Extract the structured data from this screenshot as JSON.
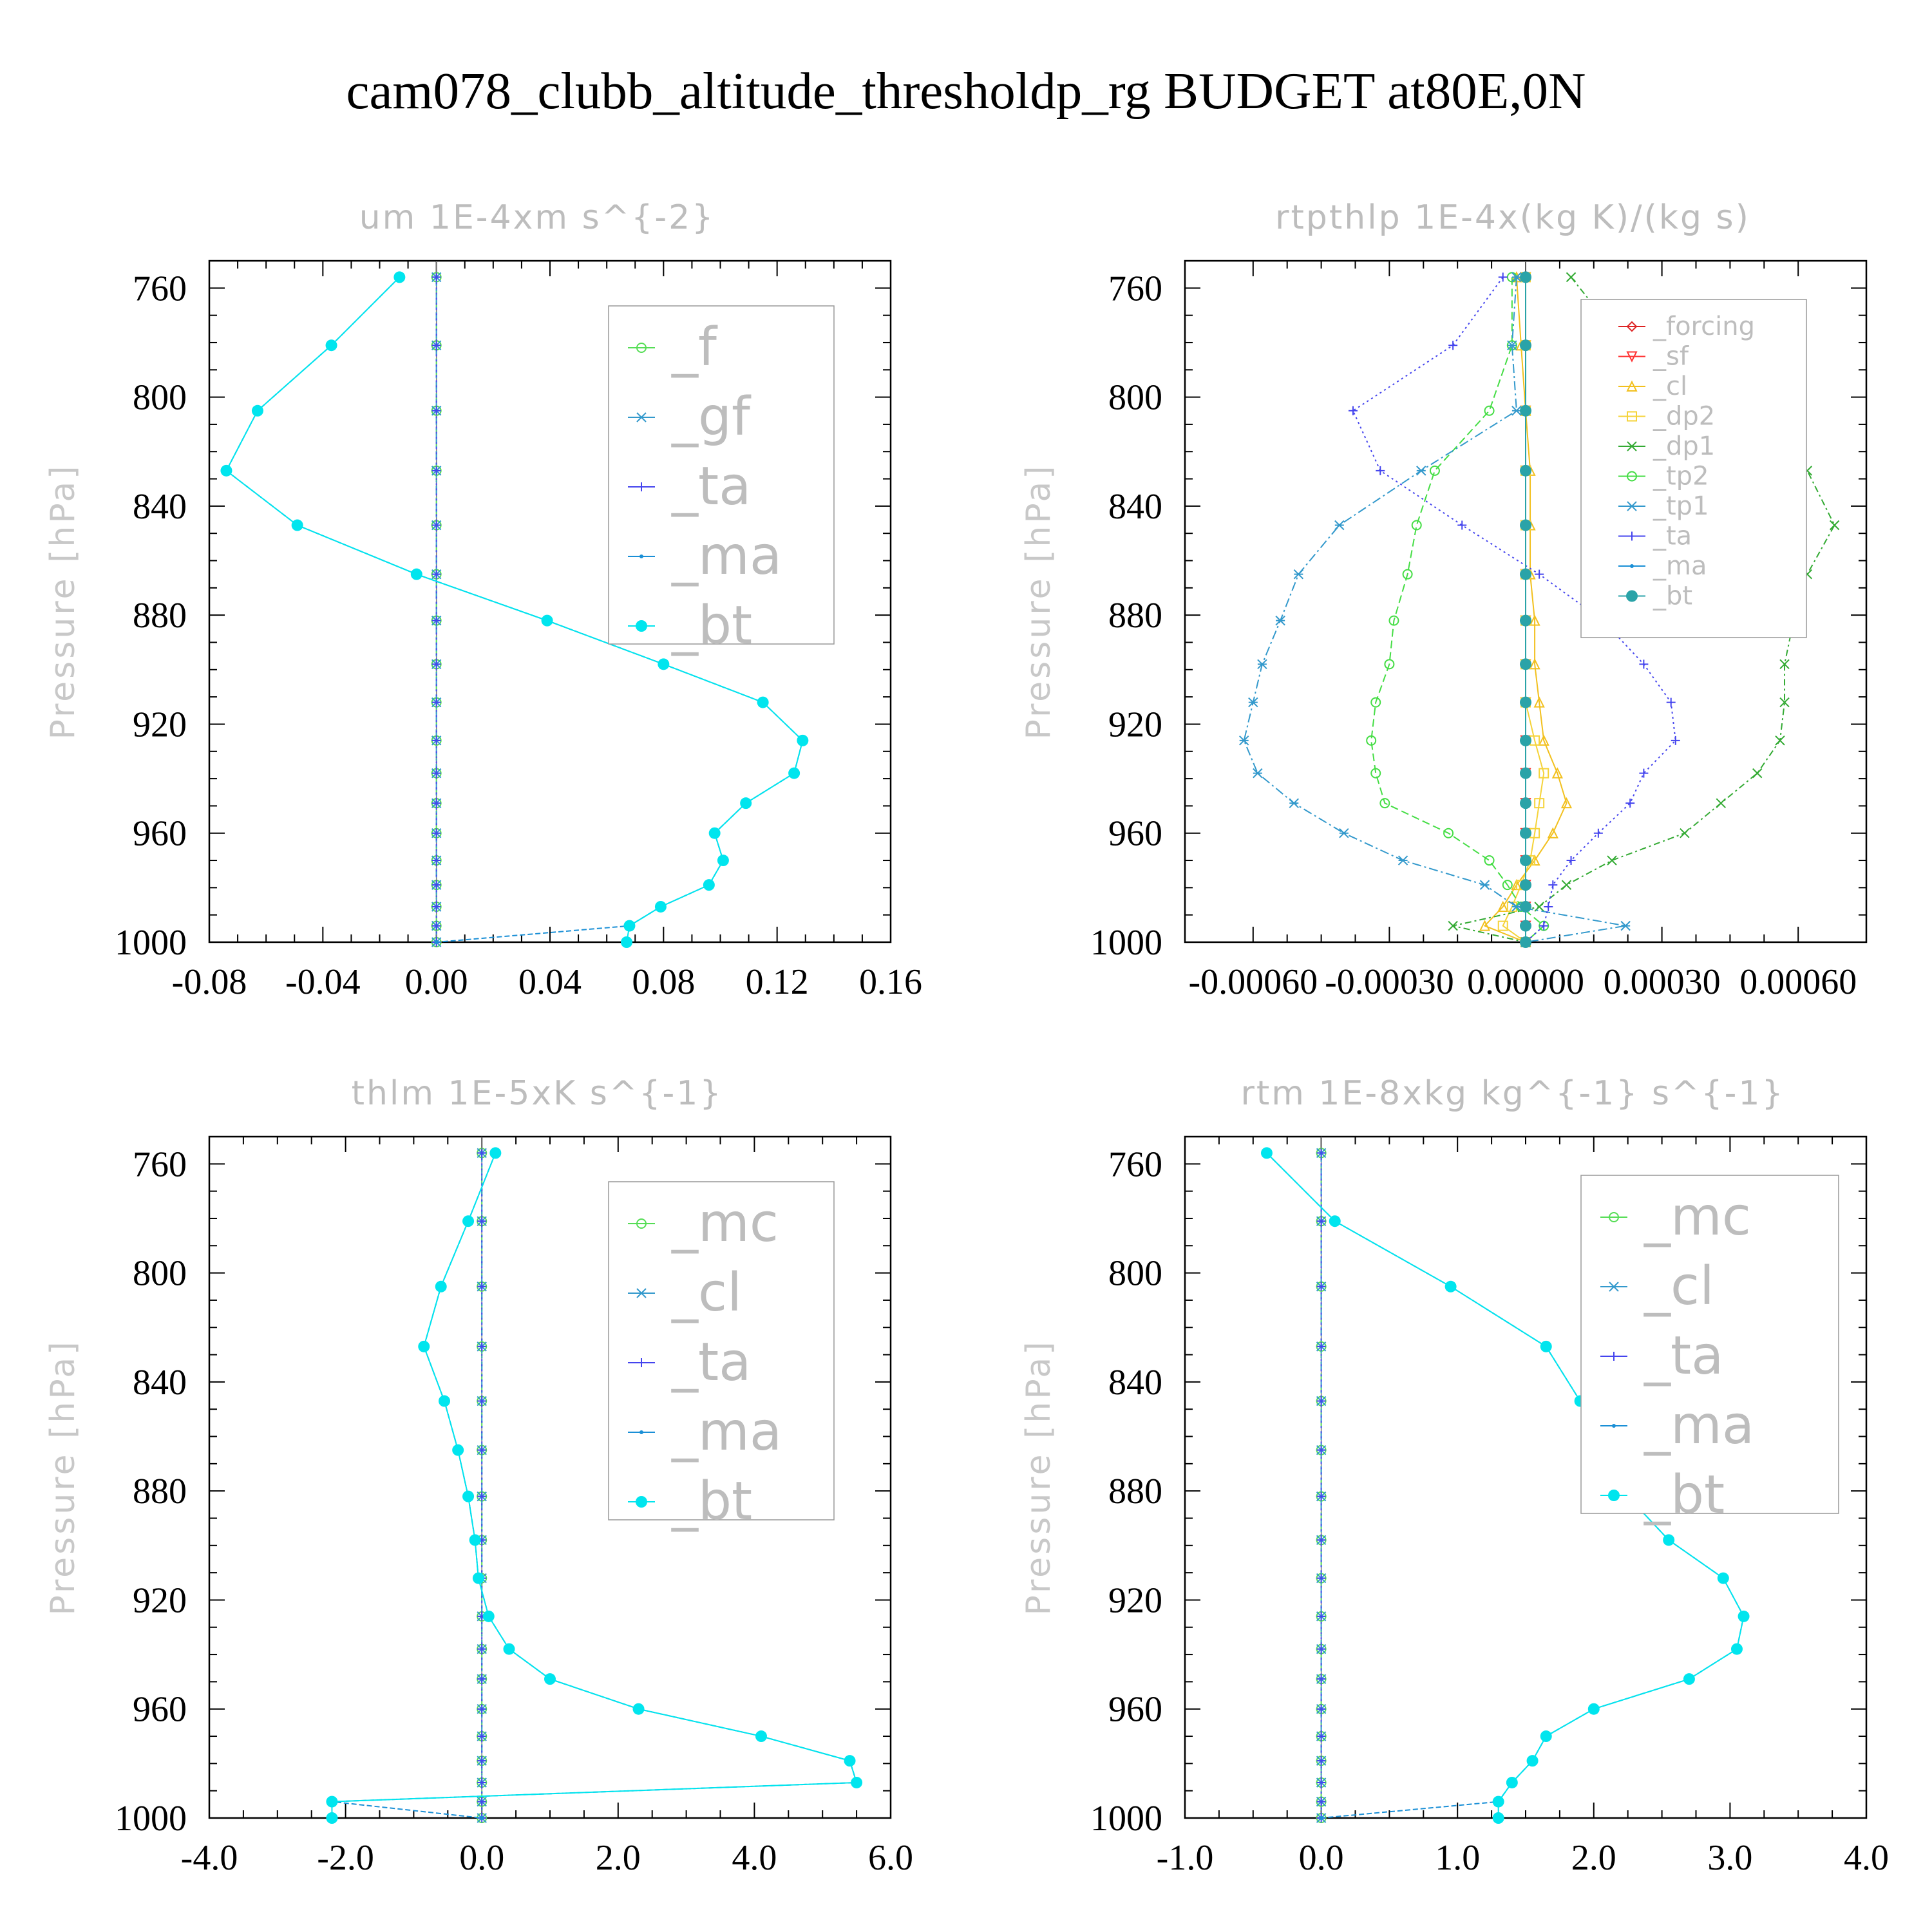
{
  "title": "cam078_clubb_altitude_thresholdp_rg  BUDGET at80E,0N",
  "chart_data": [
    {
      "type": "line",
      "title": "um  1E-4xm s^{-2}",
      "ylabel": "Pressure [hPa]",
      "ylim": [
        1000,
        750
      ],
      "xlim": [
        -0.08,
        0.16
      ],
      "yticks": [
        760,
        800,
        840,
        880,
        920,
        960,
        1000
      ],
      "xticks": [
        "-0.08",
        "-0.04",
        "0.00",
        "0.04",
        "0.08",
        "0.12",
        "0.16"
      ],
      "xtick_values": [
        -0.08,
        -0.04,
        0.0,
        0.04,
        0.08,
        0.12,
        0.16
      ],
      "legend_position": "top-right",
      "legend_font": 82,
      "pressure": [
        756,
        781,
        805,
        827,
        847,
        865,
        882,
        898,
        912,
        926,
        938,
        949,
        960,
        970,
        979,
        987,
        994,
        1000
      ],
      "series": [
        {
          "name": "_f",
          "color": "#55dd55",
          "marker": "circle",
          "dash": "12,6",
          "values": [
            0,
            0,
            0,
            0,
            0,
            0,
            0,
            0,
            0,
            0,
            0,
            0,
            0,
            0,
            0,
            0,
            0,
            0
          ]
        },
        {
          "name": "_gf",
          "color": "#3399cc",
          "marker": "star",
          "dash": "14,5,3,5",
          "values": [
            0,
            0,
            0,
            0,
            0,
            0,
            0,
            0,
            0,
            0,
            0,
            0,
            0,
            0,
            0,
            0,
            0,
            0
          ]
        },
        {
          "name": "_ta",
          "color": "#4444ee",
          "marker": "plus",
          "dash": "3,5",
          "values": [
            0,
            0,
            0,
            0,
            0,
            0,
            0,
            0,
            0,
            0,
            0,
            0,
            0,
            0,
            0,
            0,
            0,
            0
          ]
        },
        {
          "name": "_ma",
          "color": "#1a8fd6",
          "marker": "dot",
          "dash": "8,4",
          "values": [
            -0.013,
            -0.037,
            -0.063,
            -0.074,
            -0.049,
            -0.007,
            0.039,
            0.08,
            0.115,
            0.129,
            0.126,
            0.109,
            0.098,
            0.101,
            0.096,
            0.079,
            0.068,
            0.0
          ]
        },
        {
          "name": "_bt",
          "color": "#00e5ee",
          "marker": "filled",
          "dash": "",
          "values": [
            -0.013,
            -0.037,
            -0.063,
            -0.074,
            -0.049,
            -0.007,
            0.039,
            0.08,
            0.115,
            0.129,
            0.126,
            0.109,
            0.098,
            0.101,
            0.096,
            0.079,
            0.068,
            0.067
          ]
        }
      ]
    },
    {
      "type": "line",
      "title": "rtpthlp  1E-4x(kg K)/(kg s)",
      "ylabel": "Pressure [hPa]",
      "ylim": [
        1000,
        750
      ],
      "xlim": [
        -0.00075,
        0.00075
      ],
      "yticks": [
        760,
        800,
        840,
        880,
        920,
        960,
        1000
      ],
      "xticks": [
        "-0.00060",
        "-0.00030",
        "0.00000",
        "0.00030",
        "0.00060"
      ],
      "xtick_values": [
        -0.0006,
        -0.0003,
        0.0,
        0.0003,
        0.0006
      ],
      "legend_position": "top-right",
      "legend_font": 40,
      "pressure": [
        756,
        781,
        805,
        827,
        847,
        865,
        882,
        898,
        912,
        926,
        938,
        949,
        960,
        970,
        979,
        987,
        994,
        1000
      ],
      "series": [
        {
          "name": "_forcing",
          "color": "#dd2222",
          "marker": "diamond",
          "dash": "",
          "values": [
            0,
            0,
            0,
            0,
            0,
            0,
            0,
            0,
            0,
            0,
            0,
            0,
            0,
            0,
            0,
            0,
            0,
            0
          ]
        },
        {
          "name": "_sf",
          "color": "#ff3333",
          "marker": "tri",
          "dash": "",
          "values": [
            0,
            0,
            0,
            0,
            0,
            0,
            0,
            0,
            0,
            0,
            0,
            0,
            0,
            0,
            0,
            0,
            0,
            0
          ]
        },
        {
          "name": "_cl",
          "color": "#f2c01e",
          "marker": "tri-up",
          "dash": "",
          "values": [
            -2e-05,
            -1e-05,
            0,
            1e-05,
            1e-05,
            1e-05,
            2e-05,
            2e-05,
            3e-05,
            4e-05,
            7e-05,
            9e-05,
            6e-05,
            2e-05,
            -2e-05,
            -5e-05,
            -9e-05,
            0
          ]
        },
        {
          "name": "_dp2",
          "color": "#f5d33a",
          "marker": "square",
          "dash": "",
          "values": [
            0,
            0,
            0,
            0,
            0,
            0,
            0,
            0,
            0,
            2e-05,
            4e-05,
            3e-05,
            2e-05,
            1e-05,
            -1e-05,
            -3e-05,
            -5e-05,
            0
          ]
        },
        {
          "name": "_dp1",
          "color": "#33aa33",
          "marker": "x",
          "dash": "10,5,3,5",
          "values": [
            0.0001,
            0.00022,
            0.0004,
            0.00062,
            0.00068,
            0.00062,
            0.00059,
            0.00057,
            0.00057,
            0.00056,
            0.00051,
            0.00043,
            0.00035,
            0.00019,
            9e-05,
            3e-05,
            -0.00016,
            0
          ]
        },
        {
          "name": "_tp2",
          "color": "#44dd44",
          "marker": "circle",
          "dash": "12,6",
          "values": [
            -3e-05,
            -3e-05,
            -8e-05,
            -0.0002,
            -0.00024,
            -0.00026,
            -0.00029,
            -0.0003,
            -0.00033,
            -0.00034,
            -0.00033,
            -0.00031,
            -0.00017,
            -8e-05,
            -4e-05,
            -1e-05,
            4e-05,
            0
          ]
        },
        {
          "name": "_tp1",
          "color": "#3399cc",
          "marker": "star",
          "dash": "14,5,3,5",
          "values": [
            -2e-05,
            -3e-05,
            -2e-05,
            -0.00023,
            -0.00041,
            -0.0005,
            -0.00054,
            -0.00058,
            -0.0006,
            -0.00062,
            -0.00059,
            -0.00051,
            -0.0004,
            -0.00027,
            -9e-05,
            -2e-05,
            0.00022,
            0
          ]
        },
        {
          "name": "_ta",
          "color": "#4444ee",
          "marker": "plus",
          "dash": "3,5",
          "values": [
            -5e-05,
            -0.00016,
            -0.00038,
            -0.00032,
            -0.00014,
            3e-05,
            0.00017,
            0.00026,
            0.00032,
            0.00033,
            0.00026,
            0.00023,
            0.00016,
            0.0001,
            6e-05,
            5e-05,
            4e-05,
            0
          ]
        },
        {
          "name": "_ma",
          "color": "#1a8fd6",
          "marker": "dot",
          "dash": "8,4",
          "values": [
            0,
            0,
            0,
            0,
            0,
            0,
            0,
            0,
            0,
            0,
            0,
            0,
            0,
            0,
            0,
            0,
            0,
            0
          ]
        },
        {
          "name": "_bt",
          "color": "#2aa3a8",
          "marker": "filled",
          "dash": "",
          "values": [
            0,
            0,
            0,
            0,
            0,
            0,
            0,
            0,
            0,
            0,
            0,
            0,
            0,
            0,
            0,
            0,
            0,
            0
          ]
        }
      ]
    },
    {
      "type": "line",
      "title": "thlm  1E-5xK s^{-1}",
      "ylabel": "Pressure [hPa]",
      "ylim": [
        1000,
        750
      ],
      "xlim": [
        -4.0,
        6.0
      ],
      "yticks": [
        760,
        800,
        840,
        880,
        920,
        960,
        1000
      ],
      "xticks": [
        "-4.0",
        "-2.0",
        "0.0",
        "2.0",
        "4.0",
        "6.0"
      ],
      "xtick_values": [
        -4.0,
        -2.0,
        0.0,
        2.0,
        4.0,
        6.0
      ],
      "legend_position": "top-right",
      "legend_font": 82,
      "pressure": [
        756,
        781,
        805,
        827,
        847,
        865,
        882,
        898,
        912,
        926,
        938,
        949,
        960,
        970,
        979,
        987,
        994,
        1000
      ],
      "series": [
        {
          "name": "_mc",
          "color": "#55dd55",
          "marker": "circle",
          "dash": "12,6",
          "values": [
            0,
            0,
            0,
            0,
            0,
            0,
            0,
            0,
            0,
            0,
            0,
            0,
            0,
            0,
            0,
            0,
            0,
            0
          ]
        },
        {
          "name": "_cl",
          "color": "#3399cc",
          "marker": "star",
          "dash": "14,5,3,5",
          "values": [
            0,
            0,
            0,
            0,
            0,
            0,
            0,
            0,
            0,
            0,
            0,
            0,
            0,
            0,
            0,
            0,
            0,
            0
          ]
        },
        {
          "name": "_ta",
          "color": "#4444ee",
          "marker": "plus",
          "dash": "3,5",
          "values": [
            0,
            0,
            0,
            0,
            0,
            0,
            0,
            0,
            0,
            0,
            0,
            0,
            0,
            0,
            0,
            0,
            0,
            0
          ]
        },
        {
          "name": "_ma",
          "color": "#1a8fd6",
          "marker": "dot",
          "dash": "8,4",
          "values": [
            0.2,
            -0.2,
            -0.6,
            -0.85,
            -0.55,
            -0.35,
            -0.2,
            -0.1,
            -0.05,
            0.1,
            0.4,
            1.0,
            2.3,
            4.1,
            5.4,
            5.5,
            -2.2,
            0
          ]
        },
        {
          "name": "_bt",
          "color": "#00e5ee",
          "marker": "filled",
          "dash": "",
          "values": [
            0.2,
            -0.2,
            -0.6,
            -0.85,
            -0.55,
            -0.35,
            -0.2,
            -0.1,
            -0.05,
            0.1,
            0.4,
            1.0,
            2.3,
            4.1,
            5.4,
            5.5,
            -2.2,
            -2.2
          ]
        }
      ]
    },
    {
      "type": "line",
      "title": "rtm  1E-8xkg kg^{-1} s^{-1}",
      "ylabel": "Pressure [hPa]",
      "ylim": [
        1000,
        750
      ],
      "xlim": [
        -1.0,
        4.0
      ],
      "yticks": [
        760,
        800,
        840,
        880,
        920,
        960,
        1000
      ],
      "xticks": [
        "-1.0",
        "0.0",
        "1.0",
        "2.0",
        "3.0",
        "4.0"
      ],
      "xtick_values": [
        -1.0,
        0.0,
        1.0,
        2.0,
        3.0,
        4.0
      ],
      "legend_position": "top-right",
      "legend_font": 82,
      "pressure": [
        756,
        781,
        805,
        827,
        847,
        865,
        882,
        898,
        912,
        926,
        938,
        949,
        960,
        970,
        979,
        987,
        994,
        1000
      ],
      "series": [
        {
          "name": "_mc",
          "color": "#55dd55",
          "marker": "circle",
          "dash": "12,6",
          "values": [
            0,
            0,
            0,
            0,
            0,
            0,
            0,
            0,
            0,
            0,
            0,
            0,
            0,
            0,
            0,
            0,
            0,
            0
          ]
        },
        {
          "name": "_cl",
          "color": "#3399cc",
          "marker": "star",
          "dash": "14,5,3,5",
          "values": [
            0,
            0,
            0,
            0,
            0,
            0,
            0,
            0,
            0,
            0,
            0,
            0,
            0,
            0,
            0,
            0,
            0,
            0
          ]
        },
        {
          "name": "_ta",
          "color": "#4444ee",
          "marker": "plus",
          "dash": "3,5",
          "values": [
            0,
            0,
            0,
            0,
            0,
            0,
            0,
            0,
            0,
            0,
            0,
            0,
            0,
            0,
            0,
            0,
            0,
            0
          ]
        },
        {
          "name": "_ma",
          "color": "#1a8fd6",
          "marker": "dot",
          "dash": "8,4",
          "values": [
            -0.4,
            0.1,
            0.95,
            1.65,
            1.9,
            2.05,
            2.25,
            2.55,
            2.95,
            3.1,
            3.05,
            2.7,
            2.0,
            1.65,
            1.55,
            1.4,
            1.3,
            0
          ]
        },
        {
          "name": "_bt",
          "color": "#00e5ee",
          "marker": "filled",
          "dash": "",
          "values": [
            -0.4,
            0.1,
            0.95,
            1.65,
            1.9,
            2.05,
            2.25,
            2.55,
            2.95,
            3.1,
            3.05,
            2.7,
            2.0,
            1.65,
            1.55,
            1.4,
            1.3,
            1.3
          ]
        }
      ]
    }
  ]
}
